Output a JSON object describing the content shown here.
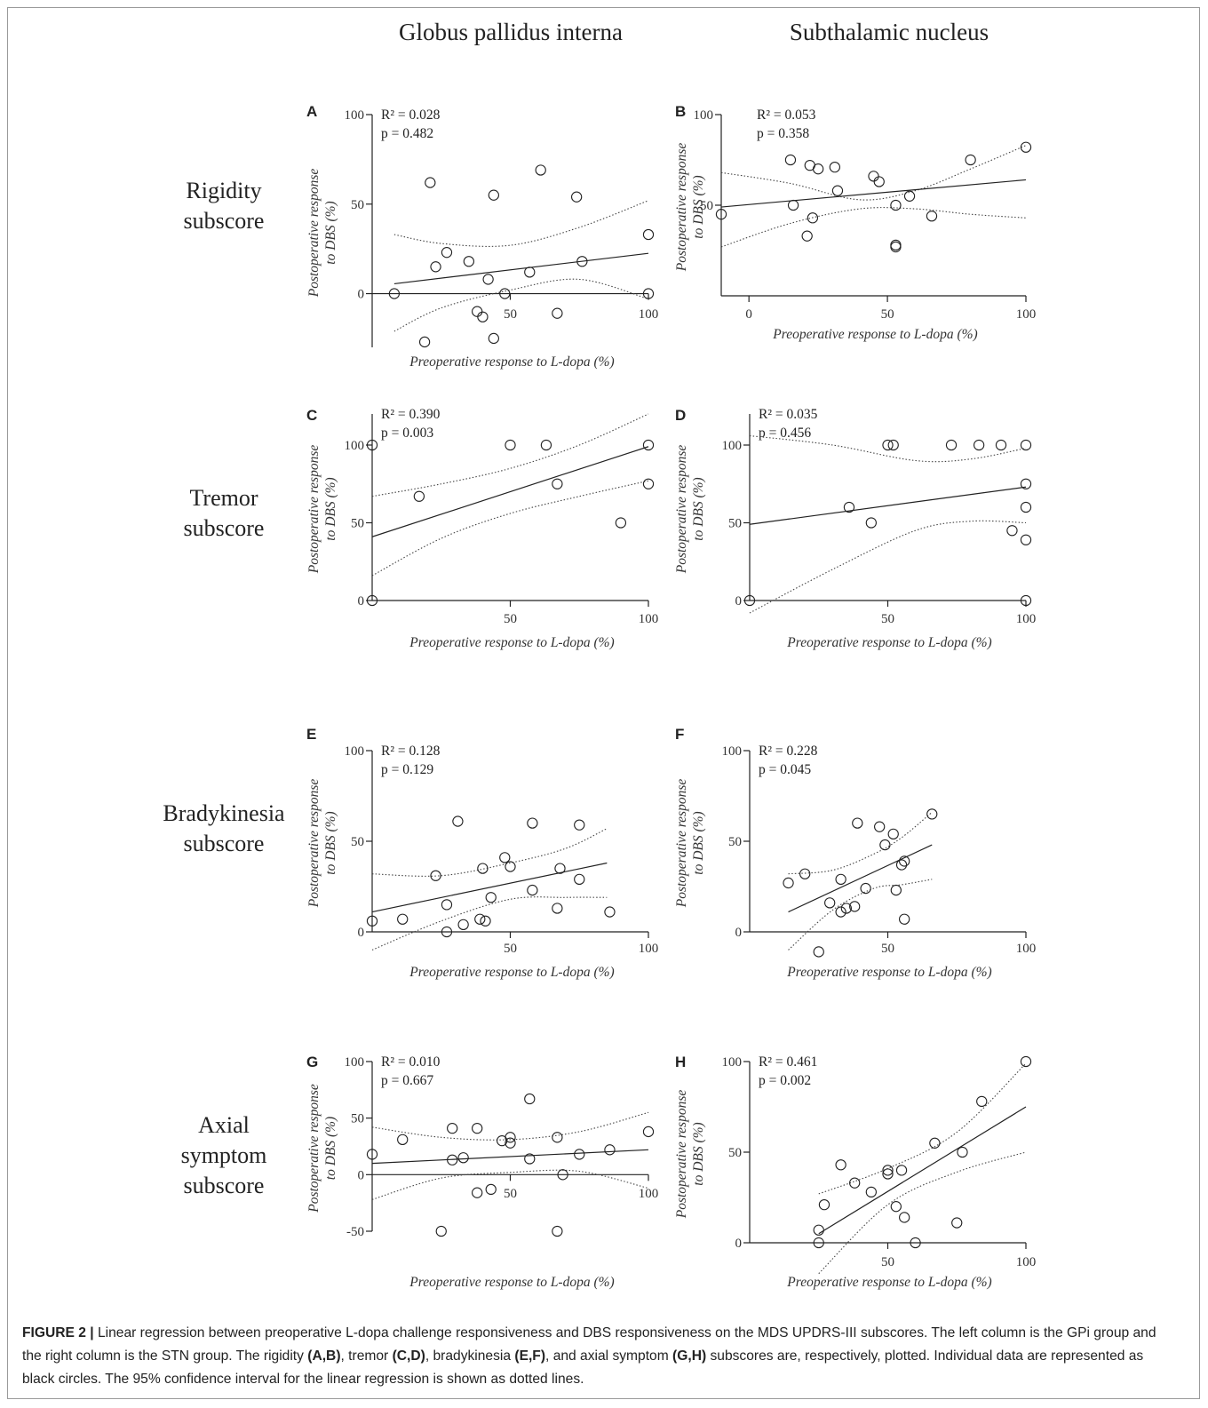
{
  "columns": [
    "Globus pallidus interna",
    "Subthalamic nucleus"
  ],
  "rows": [
    [
      "Rigidity",
      "subscore"
    ],
    [
      "Tremor",
      "subscore"
    ],
    [
      "Bradykinesia",
      "subscore"
    ],
    [
      "Axial",
      "symptom",
      "subscore"
    ]
  ],
  "caption": {
    "label": "FIGURE 2 |",
    "segments": [
      {
        "t": " Linear regression between preoperative L-dopa challenge responsiveness and DBS responsiveness on the MDS UPDRS-III subscores. The left column is the GPi group and the right column is the STN group. The rigidity ",
        "b": false
      },
      {
        "t": "(A,B)",
        "b": true
      },
      {
        "t": ", tremor ",
        "b": false
      },
      {
        "t": "(C,D)",
        "b": true
      },
      {
        "t": ", bradykinesia ",
        "b": false
      },
      {
        "t": "(E,F)",
        "b": true
      },
      {
        "t": ", and axial symptom ",
        "b": false
      },
      {
        "t": "(G,H)",
        "b": true
      },
      {
        "t": " subscores are, respectively, plotted. Individual data are represented as black circles. The 95% confidence interval for the linear regression is shown as dotted lines.",
        "b": false
      }
    ]
  },
  "chart_data": [
    {
      "panel": "A",
      "type": "scatter",
      "group": "Globus pallidus interna",
      "subscore": "Rigidity",
      "xlabel": "Preoperative response to L-dopa (%)",
      "ylabel": [
        "Postoperative response",
        "to DBS (%)"
      ],
      "r2_label": "R² = 0.028",
      "p_label": "p = 0.482",
      "xlim": [
        0,
        100
      ],
      "ylim": [
        -30,
        100
      ],
      "xticks": [
        50,
        100
      ],
      "yticks": [
        0,
        50,
        100
      ],
      "x_axis_at_zero": true,
      "regression": {
        "x": [
          8,
          100
        ],
        "y": [
          5.5,
          22.5
        ]
      },
      "ci_upper": [
        [
          8,
          33
        ],
        [
          25,
          28
        ],
        [
          50,
          27
        ],
        [
          75,
          37
        ],
        [
          100,
          52
        ]
      ],
      "ci_lower": [
        [
          8,
          -21
        ],
        [
          25,
          -8
        ],
        [
          50,
          2
        ],
        [
          75,
          8
        ],
        [
          100,
          -3
        ]
      ],
      "points": [
        [
          8,
          0
        ],
        [
          19,
          -27
        ],
        [
          21,
          62
        ],
        [
          23,
          15
        ],
        [
          27,
          23
        ],
        [
          35,
          18
        ],
        [
          38,
          -10
        ],
        [
          40,
          -13
        ],
        [
          42,
          8
        ],
        [
          44,
          55
        ],
        [
          44,
          -25
        ],
        [
          48,
          0
        ],
        [
          57,
          12
        ],
        [
          61,
          69
        ],
        [
          67,
          -11
        ],
        [
          74,
          54
        ],
        [
          76,
          18
        ],
        [
          100,
          33
        ],
        [
          100,
          0
        ]
      ]
    },
    {
      "panel": "B",
      "type": "scatter",
      "group": "Subthalamic nucleus",
      "subscore": "Rigidity",
      "xlabel": "Preoperative response to L-dopa (%)",
      "ylabel": [
        "Postoperative response",
        "to DBS (%)"
      ],
      "r2_label": "R² = 0.053",
      "p_label": "p = 0.358",
      "xlim": [
        -10,
        100
      ],
      "ylim": [
        0,
        100
      ],
      "xticks": [
        0,
        50,
        100
      ],
      "yticks": [
        50,
        100
      ],
      "x_axis_at_zero": false,
      "regression": {
        "x": [
          -10,
          100
        ],
        "y": [
          49,
          64
        ]
      },
      "ci_upper": [
        [
          -10,
          68
        ],
        [
          15,
          62
        ],
        [
          40,
          53
        ],
        [
          60,
          58
        ],
        [
          80,
          70
        ],
        [
          100,
          83
        ]
      ],
      "ci_lower": [
        [
          -10,
          27
        ],
        [
          15,
          40
        ],
        [
          40,
          48
        ],
        [
          60,
          48
        ],
        [
          80,
          45
        ],
        [
          100,
          43
        ]
      ],
      "points": [
        [
          -10,
          45
        ],
        [
          15,
          75
        ],
        [
          16,
          50
        ],
        [
          21,
          33
        ],
        [
          22,
          72
        ],
        [
          23,
          43
        ],
        [
          25,
          70
        ],
        [
          31,
          71
        ],
        [
          32,
          58
        ],
        [
          45,
          66
        ],
        [
          47,
          63
        ],
        [
          53,
          28
        ],
        [
          53,
          27
        ],
        [
          53,
          50
        ],
        [
          58,
          55
        ],
        [
          66,
          44
        ],
        [
          80,
          75
        ],
        [
          100,
          82
        ]
      ]
    },
    {
      "panel": "C",
      "type": "scatter",
      "group": "Globus pallidus interna",
      "subscore": "Tremor",
      "xlabel": "Preoperative response to L-dopa (%)",
      "ylabel": [
        "Postoperative response",
        "to DBS (%)"
      ],
      "r2_label": "R² = 0.390",
      "p_label": "p = 0.003",
      "xlim": [
        0,
        100
      ],
      "ylim": [
        0,
        120
      ],
      "xticks": [
        50,
        100
      ],
      "yticks": [
        0,
        50,
        100
      ],
      "x_axis_at_zero": true,
      "regression": {
        "x": [
          0,
          100
        ],
        "y": [
          41,
          99
        ]
      },
      "ci_upper": [
        [
          0,
          67
        ],
        [
          25,
          75
        ],
        [
          50,
          85
        ],
        [
          75,
          100
        ],
        [
          100,
          120
        ]
      ],
      "ci_lower": [
        [
          0,
          16
        ],
        [
          25,
          40
        ],
        [
          50,
          56
        ],
        [
          75,
          67
        ],
        [
          100,
          77
        ]
      ],
      "points": [
        [
          0,
          100
        ],
        [
          0,
          0
        ],
        [
          17,
          67
        ],
        [
          50,
          100
        ],
        [
          63,
          100
        ],
        [
          67,
          75
        ],
        [
          90,
          50
        ],
        [
          100,
          100
        ],
        [
          100,
          75
        ]
      ]
    },
    {
      "panel": "D",
      "type": "scatter",
      "group": "Subthalamic nucleus",
      "subscore": "Tremor",
      "xlabel": "Preoperative response to L-dopa (%)",
      "ylabel": [
        "Postoperative response",
        "to DBS (%)"
      ],
      "r2_label": "R² = 0.035",
      "p_label": "p = 0.456",
      "xlim": [
        0,
        100
      ],
      "ylim": [
        0,
        120
      ],
      "xticks": [
        50,
        100
      ],
      "yticks": [
        0,
        50,
        100
      ],
      "x_axis_at_zero": true,
      "regression": {
        "x": [
          0,
          100
        ],
        "y": [
          49,
          73
        ]
      },
      "ci_upper": [
        [
          0,
          106
        ],
        [
          30,
          100
        ],
        [
          60,
          90
        ],
        [
          80,
          91
        ],
        [
          100,
          98
        ]
      ],
      "ci_lower": [
        [
          0,
          -8
        ],
        [
          30,
          20
        ],
        [
          60,
          45
        ],
        [
          80,
          51
        ],
        [
          100,
          50
        ]
      ],
      "points": [
        [
          0,
          0
        ],
        [
          36,
          60
        ],
        [
          44,
          50
        ],
        [
          50,
          100
        ],
        [
          52,
          100
        ],
        [
          73,
          100
        ],
        [
          83,
          100
        ],
        [
          91,
          100
        ],
        [
          100,
          100
        ],
        [
          100,
          75
        ],
        [
          100,
          60
        ],
        [
          95,
          45
        ],
        [
          100,
          39
        ],
        [
          100,
          0
        ]
      ]
    },
    {
      "panel": "E",
      "type": "scatter",
      "group": "Globus pallidus interna",
      "subscore": "Bradykinesia",
      "xlabel": "Preoperative response to L-dopa (%)",
      "ylabel": [
        "Postoperative response",
        "to DBS (%)"
      ],
      "r2_label": "R² = 0.128",
      "p_label": "p = 0.129",
      "xlim": [
        0,
        100
      ],
      "ylim": [
        0,
        100
      ],
      "xticks": [
        50,
        100
      ],
      "yticks": [
        0,
        50,
        100
      ],
      "x_axis_at_zero": true,
      "regression": {
        "x": [
          0,
          85
        ],
        "y": [
          11,
          38
        ]
      },
      "ci_upper": [
        [
          0,
          32
        ],
        [
          25,
          31
        ],
        [
          50,
          38
        ],
        [
          70,
          46
        ],
        [
          85,
          57
        ]
      ],
      "ci_lower": [
        [
          0,
          -10
        ],
        [
          25,
          6
        ],
        [
          50,
          18
        ],
        [
          70,
          19
        ],
        [
          85,
          19
        ]
      ],
      "points": [
        [
          0,
          6
        ],
        [
          11,
          7
        ],
        [
          23,
          31
        ],
        [
          27,
          15
        ],
        [
          27,
          0
        ],
        [
          31,
          61
        ],
        [
          33,
          4
        ],
        [
          39,
          7
        ],
        [
          40,
          35
        ],
        [
          41,
          6
        ],
        [
          43,
          19
        ],
        [
          48,
          41
        ],
        [
          50,
          36
        ],
        [
          58,
          60
        ],
        [
          58,
          23
        ],
        [
          67,
          13
        ],
        [
          68,
          35
        ],
        [
          75,
          29
        ],
        [
          75,
          59
        ],
        [
          86,
          11
        ]
      ]
    },
    {
      "panel": "F",
      "type": "scatter",
      "group": "Subthalamic nucleus",
      "subscore": "Bradykinesia",
      "xlabel": "Preoperative response to L-dopa (%)",
      "ylabel": [
        "Postoperative response",
        "to DBS (%)"
      ],
      "r2_label": "R² = 0.228",
      "p_label": "p = 0.045",
      "xlim": [
        0,
        100
      ],
      "ylim": [
        0,
        100
      ],
      "xticks": [
        50,
        100
      ],
      "yticks": [
        0,
        50,
        100
      ],
      "x_axis_at_zero": true,
      "regression": {
        "x": [
          14,
          66
        ],
        "y": [
          11,
          48
        ]
      },
      "ci_upper": [
        [
          14,
          32
        ],
        [
          30,
          34
        ],
        [
          45,
          43
        ],
        [
          55,
          52
        ],
        [
          66,
          66
        ]
      ],
      "ci_lower": [
        [
          14,
          -10
        ],
        [
          30,
          12
        ],
        [
          45,
          24
        ],
        [
          55,
          26
        ],
        [
          66,
          29
        ]
      ],
      "points": [
        [
          14,
          27
        ],
        [
          20,
          32
        ],
        [
          25,
          -11
        ],
        [
          29,
          16
        ],
        [
          33,
          29
        ],
        [
          33,
          11
        ],
        [
          35,
          13
        ],
        [
          38,
          14
        ],
        [
          39,
          60
        ],
        [
          42,
          24
        ],
        [
          47,
          58
        ],
        [
          49,
          48
        ],
        [
          52,
          54
        ],
        [
          53,
          23
        ],
        [
          55,
          37
        ],
        [
          56,
          39
        ],
        [
          56,
          7
        ],
        [
          66,
          65
        ]
      ]
    },
    {
      "panel": "G",
      "type": "scatter",
      "group": "Globus pallidus interna",
      "subscore": "Axial symptom",
      "xlabel": "Preoperative response to L-dopa (%)",
      "ylabel": [
        "Postoperative response",
        "to DBS (%)"
      ],
      "r2_label": "R² = 0.010",
      "p_label": "p = 0.667",
      "xlim": [
        0,
        100
      ],
      "ylim": [
        -50,
        100
      ],
      "xticks": [
        50,
        100
      ],
      "yticks": [
        -50,
        0,
        50,
        100
      ],
      "x_axis_at_zero": true,
      "regression": {
        "x": [
          0,
          100
        ],
        "y": [
          10,
          22
        ]
      },
      "ci_upper": [
        [
          0,
          42
        ],
        [
          25,
          33
        ],
        [
          50,
          31
        ],
        [
          75,
          38
        ],
        [
          100,
          55
        ]
      ],
      "ci_lower": [
        [
          0,
          -22
        ],
        [
          25,
          -3
        ],
        [
          50,
          2
        ],
        [
          75,
          3
        ],
        [
          100,
          -12
        ]
      ],
      "points": [
        [
          0,
          18
        ],
        [
          11,
          31
        ],
        [
          25,
          -50
        ],
        [
          29,
          13
        ],
        [
          29,
          41
        ],
        [
          33,
          15
        ],
        [
          38,
          41
        ],
        [
          38,
          -16
        ],
        [
          43,
          -13
        ],
        [
          47,
          30
        ],
        [
          50,
          33
        ],
        [
          50,
          28
        ],
        [
          57,
          14
        ],
        [
          57,
          67
        ],
        [
          67,
          33
        ],
        [
          67,
          -50
        ],
        [
          69,
          0
        ],
        [
          75,
          18
        ],
        [
          86,
          22
        ],
        [
          100,
          38
        ]
      ]
    },
    {
      "panel": "H",
      "type": "scatter",
      "group": "Subthalamic nucleus",
      "subscore": "Axial symptom",
      "xlabel": "Preoperative response to L-dopa (%)",
      "ylabel": [
        "Postoperative response",
        "to DBS (%)"
      ],
      "r2_label": "R² = 0.461",
      "p_label": "p = 0.002",
      "xlim": [
        0,
        100
      ],
      "ylim": [
        0,
        100
      ],
      "xticks": [
        50,
        100
      ],
      "yticks": [
        0,
        50,
        100
      ],
      "x_axis_at_zero": true,
      "regression": {
        "x": [
          25,
          100
        ],
        "y": [
          5,
          75
        ]
      },
      "ci_upper": [
        [
          25,
          27
        ],
        [
          50,
          41
        ],
        [
          75,
          61
        ],
        [
          100,
          99
        ]
      ],
      "ci_lower": [
        [
          25,
          -17
        ],
        [
          50,
          21
        ],
        [
          75,
          39
        ],
        [
          100,
          50
        ]
      ],
      "points": [
        [
          25,
          7
        ],
        [
          25,
          0
        ],
        [
          27,
          21
        ],
        [
          33,
          43
        ],
        [
          38,
          33
        ],
        [
          44,
          28
        ],
        [
          50,
          40
        ],
        [
          50,
          38
        ],
        [
          53,
          20
        ],
        [
          55,
          40
        ],
        [
          56,
          14
        ],
        [
          60,
          0
        ],
        [
          67,
          55
        ],
        [
          75,
          11
        ],
        [
          77,
          50
        ],
        [
          84,
          78
        ],
        [
          100,
          100
        ]
      ]
    }
  ]
}
